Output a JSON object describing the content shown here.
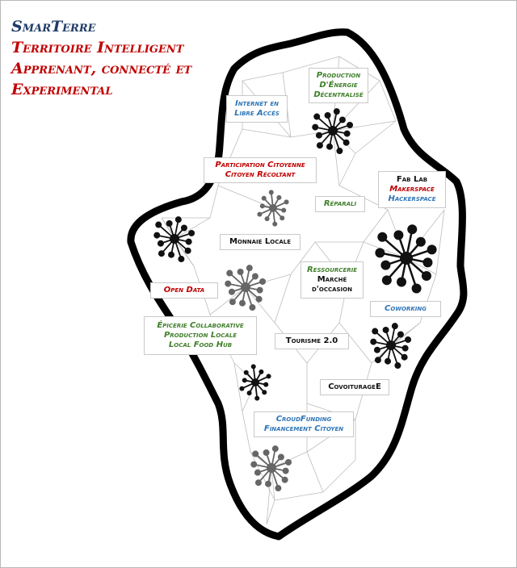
{
  "title": {
    "brand": "SmarTerre",
    "line1": "Territoire Intelligent",
    "line2": "Apprenant, connecté et",
    "line3": "Experimental"
  },
  "colors": {
    "brand": "#1f3c66",
    "accent_red": "#c00000",
    "blue": "#2e75b6",
    "green": "#3f7f2a",
    "black": "#111111",
    "grey": "#666666",
    "outline": "#000000",
    "network_line": "#bdbdbd"
  },
  "labels": [
    {
      "id": "energie",
      "lines": [
        {
          "text": "Production",
          "color": "green"
        },
        {
          "text": "D'Énergie",
          "color": "green"
        },
        {
          "text": "Décentralisé",
          "color": "green"
        }
      ]
    },
    {
      "id": "internet",
      "lines": [
        {
          "text": "Internet en",
          "color": "blue"
        },
        {
          "text": "Libre Accès",
          "color": "blue"
        }
      ]
    },
    {
      "id": "participation",
      "lines": [
        {
          "text": "Participation Citoyenne",
          "color": "red"
        },
        {
          "text": "Citoyen Récoltant",
          "color": "red"
        }
      ]
    },
    {
      "id": "fablab",
      "lines": [
        {
          "text": "Fab Lab",
          "color": "black"
        },
        {
          "text": "Makerspace",
          "color": "red"
        },
        {
          "text": "Hackerspace",
          "color": "blue"
        }
      ]
    },
    {
      "id": "reparali",
      "lines": [
        {
          "text": "Réparali",
          "color": "green"
        }
      ]
    },
    {
      "id": "monnaie",
      "lines": [
        {
          "text": "Monnaie Locale",
          "color": "black"
        }
      ]
    },
    {
      "id": "ressourcerie",
      "lines": [
        {
          "text": "Ressourcerie",
          "color": "green"
        },
        {
          "text": "Marché",
          "color": "black"
        },
        {
          "text": "d'occasion",
          "color": "black"
        }
      ]
    },
    {
      "id": "opendata",
      "lines": [
        {
          "text": "Open Data",
          "color": "red"
        }
      ]
    },
    {
      "id": "coworking",
      "lines": [
        {
          "text": "Coworking",
          "color": "blue"
        }
      ]
    },
    {
      "id": "epicerie",
      "lines": [
        {
          "text": "Épicerie Collaborative",
          "color": "green"
        },
        {
          "text": "Production Locale",
          "color": "green"
        },
        {
          "text": "Local Food Hub",
          "color": "green"
        }
      ]
    },
    {
      "id": "tourisme",
      "lines": [
        {
          "text": "Tourisme 2.0",
          "color": "black"
        }
      ]
    },
    {
      "id": "covoiturage",
      "lines": [
        {
          "text": "CovoiturageE",
          "color": "black"
        }
      ]
    },
    {
      "id": "crowdfunding",
      "lines": [
        {
          "text": "CroudFunding",
          "color": "blue"
        },
        {
          "text": "Financement Citoyen",
          "color": "blue"
        }
      ]
    }
  ],
  "hubs": [
    {
      "id": "hub-energie",
      "tone": "black",
      "size": "medium"
    },
    {
      "id": "hub-participation",
      "tone": "grey",
      "size": "small"
    },
    {
      "id": "hub-west",
      "tone": "black",
      "size": "medium"
    },
    {
      "id": "hub-fablab",
      "tone": "black",
      "size": "large"
    },
    {
      "id": "hub-opendata",
      "tone": "grey",
      "size": "medium"
    },
    {
      "id": "hub-coworking",
      "tone": "black",
      "size": "medium"
    },
    {
      "id": "hub-tourisme",
      "tone": "black",
      "size": "small"
    },
    {
      "id": "hub-south",
      "tone": "grey",
      "size": "medium"
    }
  ]
}
